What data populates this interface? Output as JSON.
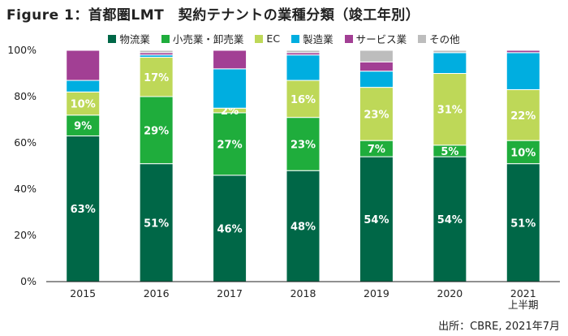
{
  "title": "Figure 1：首都圏LMT　契約テナントの業種分類（竣工年別）",
  "source": "出所：CBRE, 2021年7月",
  "chart_data": {
    "type": "bar",
    "stacked": true,
    "categories": [
      "2015",
      "2016",
      "2017",
      "2018",
      "2019",
      "2020",
      [
        "2021",
        "上半期"
      ]
    ],
    "ylim": [
      0,
      100
    ],
    "yticks": [
      "0%",
      "20%",
      "40%",
      "60%",
      "80%",
      "100%"
    ],
    "legend_position": "top",
    "grid": false,
    "series": [
      {
        "name": "物流業",
        "color": "#006747",
        "values": [
          63,
          51,
          46,
          48,
          54,
          54,
          51
        ],
        "labels": [
          "63%",
          "51%",
          "46%",
          "48%",
          "54%",
          "54%",
          "51%"
        ]
      },
      {
        "name": "小売業・卸売業",
        "color": "#1fad3c",
        "values": [
          9,
          29,
          27,
          23,
          7,
          5,
          10
        ],
        "labels": [
          "9%",
          "29%",
          "27%",
          "23%",
          "7%",
          "5%",
          "10%"
        ]
      },
      {
        "name": "EC",
        "color": "#bed858",
        "values": [
          10,
          17,
          2,
          16,
          23,
          31,
          22
        ],
        "labels": [
          "10%",
          "17%",
          "2%",
          "16%",
          "23%",
          "31%",
          "22%"
        ]
      },
      {
        "name": "製造業",
        "color": "#00aee0",
        "values": [
          5,
          1,
          17,
          11,
          7,
          9,
          16
        ],
        "labels": [
          "",
          "",
          "",
          "",
          "",
          "",
          ""
        ]
      },
      {
        "name": "サービス業",
        "color": "#a23f94",
        "values": [
          13,
          1,
          8,
          1,
          4,
          0,
          1
        ],
        "labels": [
          "",
          "",
          "",
          "",
          "",
          "",
          ""
        ]
      },
      {
        "name": "その他",
        "color": "#bdbdbd",
        "values": [
          0,
          1,
          0,
          1,
          5,
          1,
          0
        ],
        "labels": [
          "",
          "",
          "",
          "",
          "",
          "",
          ""
        ]
      }
    ]
  }
}
